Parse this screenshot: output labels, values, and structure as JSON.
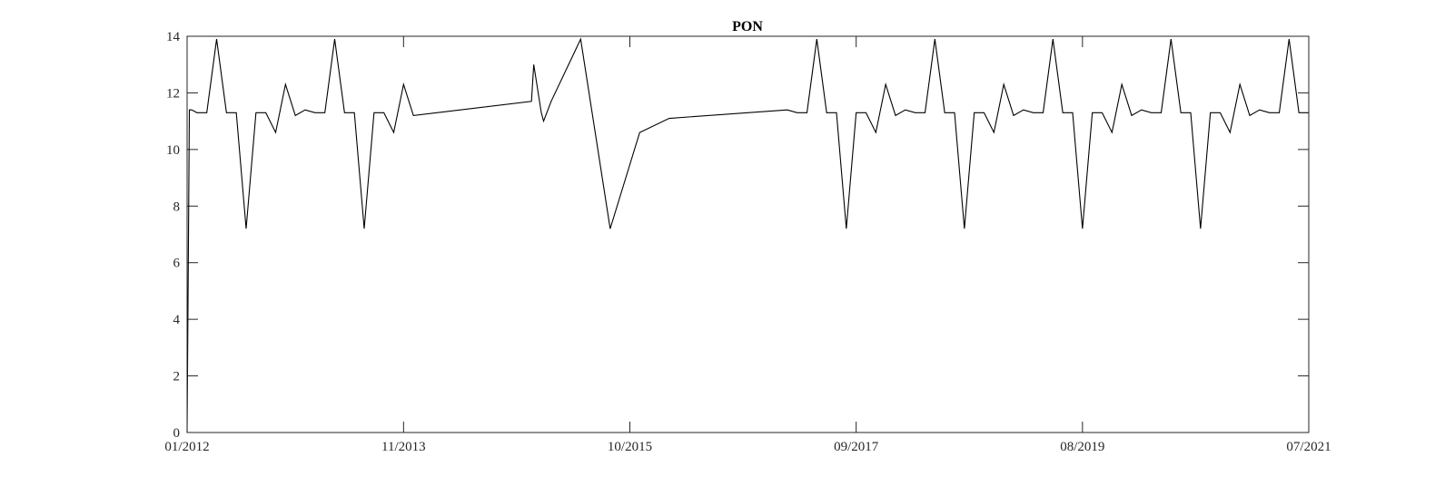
{
  "chart_data": {
    "type": "line",
    "title": "PON",
    "xlabel": "",
    "ylabel": "",
    "x_axis": "date (month)",
    "xlim": [
      "2012-01",
      "2021-07"
    ],
    "ylim": [
      0,
      14
    ],
    "yticks": [
      0,
      2,
      4,
      6,
      8,
      10,
      12,
      14
    ],
    "xticks": [
      {
        "date": "2012-01",
        "label": "01/2012"
      },
      {
        "date": "2013-11",
        "label": "11/2013"
      },
      {
        "date": "2015-10",
        "label": "10/2015"
      },
      {
        "date": "2017-09",
        "label": "09/2017"
      },
      {
        "date": "2019-08",
        "label": "08/2019"
      },
      {
        "date": "2021-07",
        "label": "07/2021"
      }
    ],
    "grid": false,
    "box": true,
    "line_color": "#000000",
    "series": [
      {
        "x": [
          "2012-01",
          "2012-01",
          "2012-01",
          "2012-02",
          "2012-03",
          "2012-04",
          "2012-05",
          "2012-06",
          "2012-07",
          "2012-08",
          "2012-09",
          "2012-10",
          "2012-11",
          "2012-12",
          "2013-01",
          "2013-02",
          "2013-03",
          "2013-04",
          "2013-05",
          "2013-06",
          "2013-07",
          "2013-08",
          "2013-09",
          "2013-10",
          "2013-11",
          "2013-12",
          "2014-12",
          "2014-12",
          "2015-01",
          "2015-01",
          "2015-02",
          "2015-05",
          "2015-08",
          "2015-11",
          "2016-02",
          "2017-02",
          "2017-03",
          "2017-04",
          "2017-05",
          "2017-06",
          "2017-07",
          "2017-08",
          "2017-09",
          "2017-10",
          "2017-11",
          "2017-12",
          "2018-01",
          "2018-02",
          "2018-03",
          "2018-04",
          "2018-05",
          "2018-06",
          "2018-07",
          "2018-08",
          "2018-09",
          "2018-10",
          "2018-11",
          "2018-12",
          "2019-01",
          "2019-02",
          "2019-03",
          "2019-04",
          "2019-05",
          "2019-06",
          "2019-07",
          "2019-08",
          "2019-09",
          "2019-10",
          "2019-11",
          "2019-12",
          "2020-01",
          "2020-02",
          "2020-03",
          "2020-04",
          "2020-05",
          "2020-06",
          "2020-07",
          "2020-08",
          "2020-09",
          "2020-10",
          "2020-11",
          "2020-12",
          "2021-01",
          "2021-02",
          "2021-03",
          "2021-04",
          "2021-05",
          "2021-06",
          "2021-07"
        ],
        "y": [
          0,
          11.4,
          11.4,
          11.3,
          11.3,
          13.9,
          11.3,
          11.3,
          7.2,
          11.3,
          11.3,
          10.6,
          12.3,
          11.2,
          11.4,
          11.3,
          11.3,
          13.9,
          11.3,
          11.3,
          7.2,
          11.3,
          11.3,
          10.6,
          12.3,
          11.2,
          11.7,
          13.0,
          11.3,
          11.0,
          11.7,
          13.9,
          7.2,
          10.6,
          11.1,
          11.4,
          11.3,
          11.3,
          13.9,
          11.3,
          11.3,
          7.2,
          11.3,
          11.3,
          10.6,
          12.3,
          11.2,
          11.4,
          11.3,
          11.3,
          13.9,
          11.3,
          11.3,
          7.2,
          11.3,
          11.3,
          10.6,
          12.3,
          11.2,
          11.4,
          11.3,
          11.3,
          13.9,
          11.3,
          11.3,
          7.2,
          11.3,
          11.3,
          10.6,
          12.3,
          11.2,
          11.4,
          11.3,
          11.3,
          13.9,
          11.3,
          11.3,
          7.2,
          11.3,
          11.3,
          10.6,
          12.3,
          11.2,
          11.4,
          11.3,
          11.3,
          13.9,
          11.3,
          11.3
        ]
      }
    ]
  }
}
